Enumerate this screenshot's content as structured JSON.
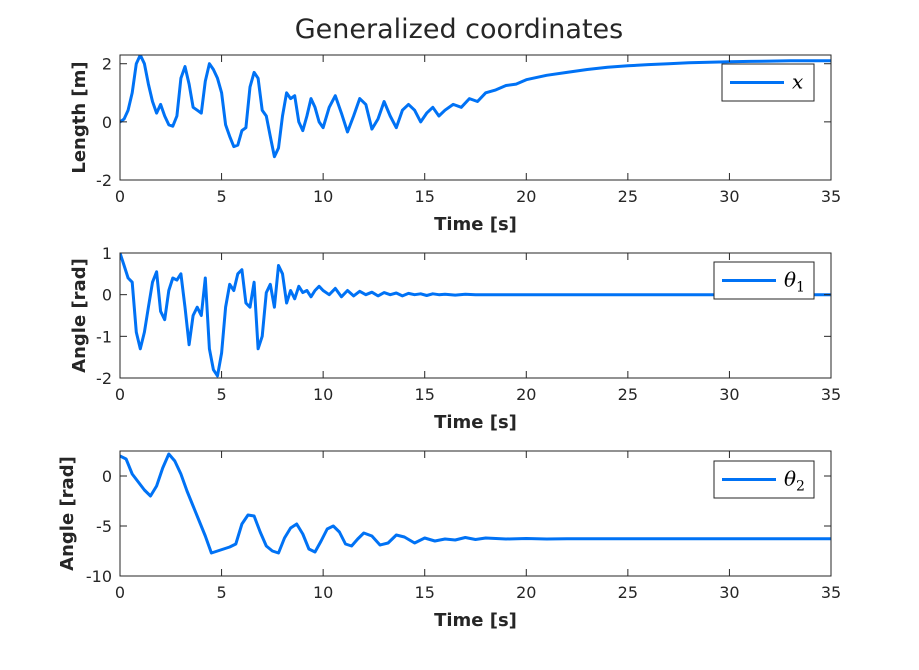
{
  "title": "Generalized coordinates",
  "colors": {
    "line": "#0072f5",
    "axes": "#262626",
    "background": "#ffffff"
  },
  "chart_data": [
    {
      "type": "line",
      "xlabel": "Time [s]",
      "ylabel": "Length [m]",
      "xlim": [
        0,
        35
      ],
      "ylim": [
        -2,
        2.3
      ],
      "xticks": [
        0,
        5,
        10,
        15,
        20,
        25,
        30,
        35
      ],
      "yticks": [
        -2,
        0,
        2
      ],
      "grid": false,
      "legend_position": "top-right",
      "series": [
        {
          "name": "x",
          "x": [
            0,
            0.2,
            0.4,
            0.6,
            0.8,
            1.0,
            1.2,
            1.4,
            1.6,
            1.8,
            2.0,
            2.2,
            2.4,
            2.6,
            2.8,
            3.0,
            3.2,
            3.4,
            3.6,
            3.8,
            4.0,
            4.2,
            4.4,
            4.6,
            4.8,
            5.0,
            5.2,
            5.4,
            5.6,
            5.8,
            6.0,
            6.2,
            6.4,
            6.6,
            6.8,
            7.0,
            7.2,
            7.4,
            7.6,
            7.8,
            8.0,
            8.2,
            8.4,
            8.6,
            8.8,
            9.0,
            9.2,
            9.4,
            9.6,
            9.8,
            10.0,
            10.3,
            10.6,
            10.9,
            11.2,
            11.5,
            11.8,
            12.1,
            12.4,
            12.7,
            13.0,
            13.3,
            13.6,
            13.9,
            14.2,
            14.5,
            14.8,
            15.1,
            15.4,
            15.7,
            16.0,
            16.4,
            16.8,
            17.2,
            17.6,
            18.0,
            18.5,
            19.0,
            19.5,
            20.0,
            21,
            22,
            23,
            24,
            25,
            26,
            27,
            28,
            29,
            30,
            31,
            32,
            33,
            34,
            35
          ],
          "y": [
            0,
            0.1,
            0.4,
            1.0,
            2.0,
            2.3,
            2.0,
            1.3,
            0.7,
            0.3,
            0.6,
            0.2,
            -0.1,
            -0.15,
            0.2,
            1.5,
            1.9,
            1.3,
            0.5,
            0.4,
            0.3,
            1.4,
            2.0,
            1.8,
            1.5,
            1.0,
            -0.1,
            -0.5,
            -0.85,
            -0.8,
            -0.3,
            -0.2,
            1.2,
            1.7,
            1.5,
            0.4,
            0.2,
            -0.5,
            -1.2,
            -0.9,
            0.2,
            1.0,
            0.8,
            0.9,
            0.0,
            -0.3,
            0.2,
            0.8,
            0.5,
            0.0,
            -0.2,
            0.5,
            0.9,
            0.3,
            -0.35,
            0.2,
            0.8,
            0.6,
            -0.25,
            0.1,
            0.7,
            0.2,
            -0.2,
            0.4,
            0.6,
            0.4,
            0.0,
            0.3,
            0.5,
            0.2,
            0.4,
            0.6,
            0.5,
            0.8,
            0.7,
            1.0,
            1.1,
            1.25,
            1.3,
            1.45,
            1.6,
            1.7,
            1.8,
            1.88,
            1.93,
            1.97,
            2.0,
            2.03,
            2.05,
            2.07,
            2.08,
            2.09,
            2.1,
            2.1,
            2.1
          ]
        }
      ]
    },
    {
      "type": "line",
      "xlabel": "Time [s]",
      "ylabel": "Angle [rad]",
      "xlim": [
        0,
        35
      ],
      "ylim": [
        -2,
        1
      ],
      "xticks": [
        0,
        5,
        10,
        15,
        20,
        25,
        30,
        35
      ],
      "yticks": [
        -2,
        -1,
        0,
        1
      ],
      "grid": false,
      "legend_position": "top-right",
      "series": [
        {
          "name": "θ1",
          "x": [
            0,
            0.2,
            0.4,
            0.6,
            0.8,
            1.0,
            1.2,
            1.4,
            1.6,
            1.8,
            2.0,
            2.2,
            2.4,
            2.6,
            2.8,
            3.0,
            3.2,
            3.4,
            3.6,
            3.8,
            4.0,
            4.2,
            4.4,
            4.6,
            4.8,
            5.0,
            5.2,
            5.4,
            5.6,
            5.8,
            6.0,
            6.2,
            6.4,
            6.6,
            6.8,
            7.0,
            7.2,
            7.4,
            7.6,
            7.8,
            8.0,
            8.2,
            8.4,
            8.6,
            8.8,
            9.0,
            9.2,
            9.4,
            9.6,
            9.8,
            10.0,
            10.3,
            10.6,
            10.9,
            11.2,
            11.5,
            11.8,
            12.1,
            12.4,
            12.7,
            13.0,
            13.3,
            13.6,
            13.9,
            14.2,
            14.5,
            14.8,
            15.1,
            15.4,
            15.7,
            16.0,
            16.5,
            17.0,
            17.5,
            18.0,
            18.5,
            19.0,
            20.0,
            21,
            22,
            23,
            24,
            25,
            26,
            27,
            28,
            29,
            30,
            31,
            32,
            33,
            34,
            35
          ],
          "y": [
            1.0,
            0.7,
            0.4,
            0.3,
            -0.9,
            -1.3,
            -0.9,
            -0.3,
            0.3,
            0.55,
            -0.4,
            -0.6,
            0.1,
            0.4,
            0.35,
            0.5,
            -0.3,
            -1.2,
            -0.5,
            -0.3,
            -0.5,
            0.4,
            -1.3,
            -1.8,
            -1.95,
            -1.4,
            -0.3,
            0.25,
            0.1,
            0.5,
            0.6,
            -0.2,
            -0.3,
            0.3,
            -1.3,
            -1.0,
            0.05,
            0.25,
            -0.3,
            0.7,
            0.5,
            -0.2,
            0.1,
            -0.1,
            0.2,
            0.05,
            0.1,
            -0.05,
            0.1,
            0.2,
            0.1,
            0.0,
            0.15,
            -0.05,
            0.1,
            -0.03,
            0.08,
            0.0,
            0.06,
            -0.03,
            0.05,
            0.0,
            0.04,
            -0.03,
            0.03,
            0.0,
            0.02,
            -0.02,
            0.02,
            0.0,
            0.01,
            -0.01,
            0.01,
            0,
            0,
            0,
            0,
            0,
            0,
            0,
            0,
            0,
            0,
            0,
            0,
            0,
            0,
            0,
            0,
            0,
            0,
            0,
            0
          ]
        }
      ]
    },
    {
      "type": "line",
      "xlabel": "Time [s]",
      "ylabel": "Angle [rad]",
      "xlim": [
        0,
        35
      ],
      "ylim": [
        -10,
        2.5
      ],
      "xticks": [
        0,
        5,
        10,
        15,
        20,
        25,
        30,
        35
      ],
      "yticks": [
        -10,
        -5,
        0
      ],
      "grid": false,
      "legend_position": "top-right",
      "series": [
        {
          "name": "θ2",
          "x": [
            0,
            0.3,
            0.6,
            0.9,
            1.2,
            1.5,
            1.8,
            2.1,
            2.4,
            2.7,
            3.0,
            3.3,
            3.6,
            3.9,
            4.2,
            4.5,
            4.8,
            5.1,
            5.4,
            5.7,
            6.0,
            6.3,
            6.6,
            6.9,
            7.2,
            7.5,
            7.8,
            8.1,
            8.4,
            8.7,
            9.0,
            9.3,
            9.6,
            9.9,
            10.2,
            10.5,
            10.8,
            11.1,
            11.4,
            11.7,
            12.0,
            12.4,
            12.8,
            13.2,
            13.6,
            14.0,
            14.5,
            15.0,
            15.5,
            16.0,
            16.5,
            17.0,
            17.5,
            18.0,
            19,
            20,
            21,
            22,
            23,
            24,
            25,
            26,
            27,
            28,
            29,
            30,
            31,
            32,
            33,
            34,
            35
          ],
          "y": [
            2,
            1.7,
            0.2,
            -0.6,
            -1.4,
            -2.0,
            -1.0,
            0.8,
            2.2,
            1.5,
            0.2,
            -1.5,
            -3.0,
            -4.5,
            -6.0,
            -7.7,
            -7.5,
            -7.3,
            -7.1,
            -6.8,
            -4.8,
            -3.9,
            -4.0,
            -5.6,
            -7.0,
            -7.5,
            -7.7,
            -6.2,
            -5.2,
            -4.8,
            -5.8,
            -7.3,
            -7.6,
            -6.5,
            -5.3,
            -5.0,
            -5.6,
            -6.8,
            -7.0,
            -6.3,
            -5.7,
            -6.0,
            -6.9,
            -6.7,
            -5.9,
            -6.1,
            -6.7,
            -6.2,
            -6.5,
            -6.3,
            -6.4,
            -6.15,
            -6.35,
            -6.2,
            -6.3,
            -6.25,
            -6.3,
            -6.28,
            -6.28,
            -6.28,
            -6.28,
            -6.28,
            -6.28,
            -6.28,
            -6.28,
            -6.28,
            -6.28,
            -6.28,
            -6.28,
            -6.28,
            -6.28
          ]
        }
      ]
    }
  ]
}
